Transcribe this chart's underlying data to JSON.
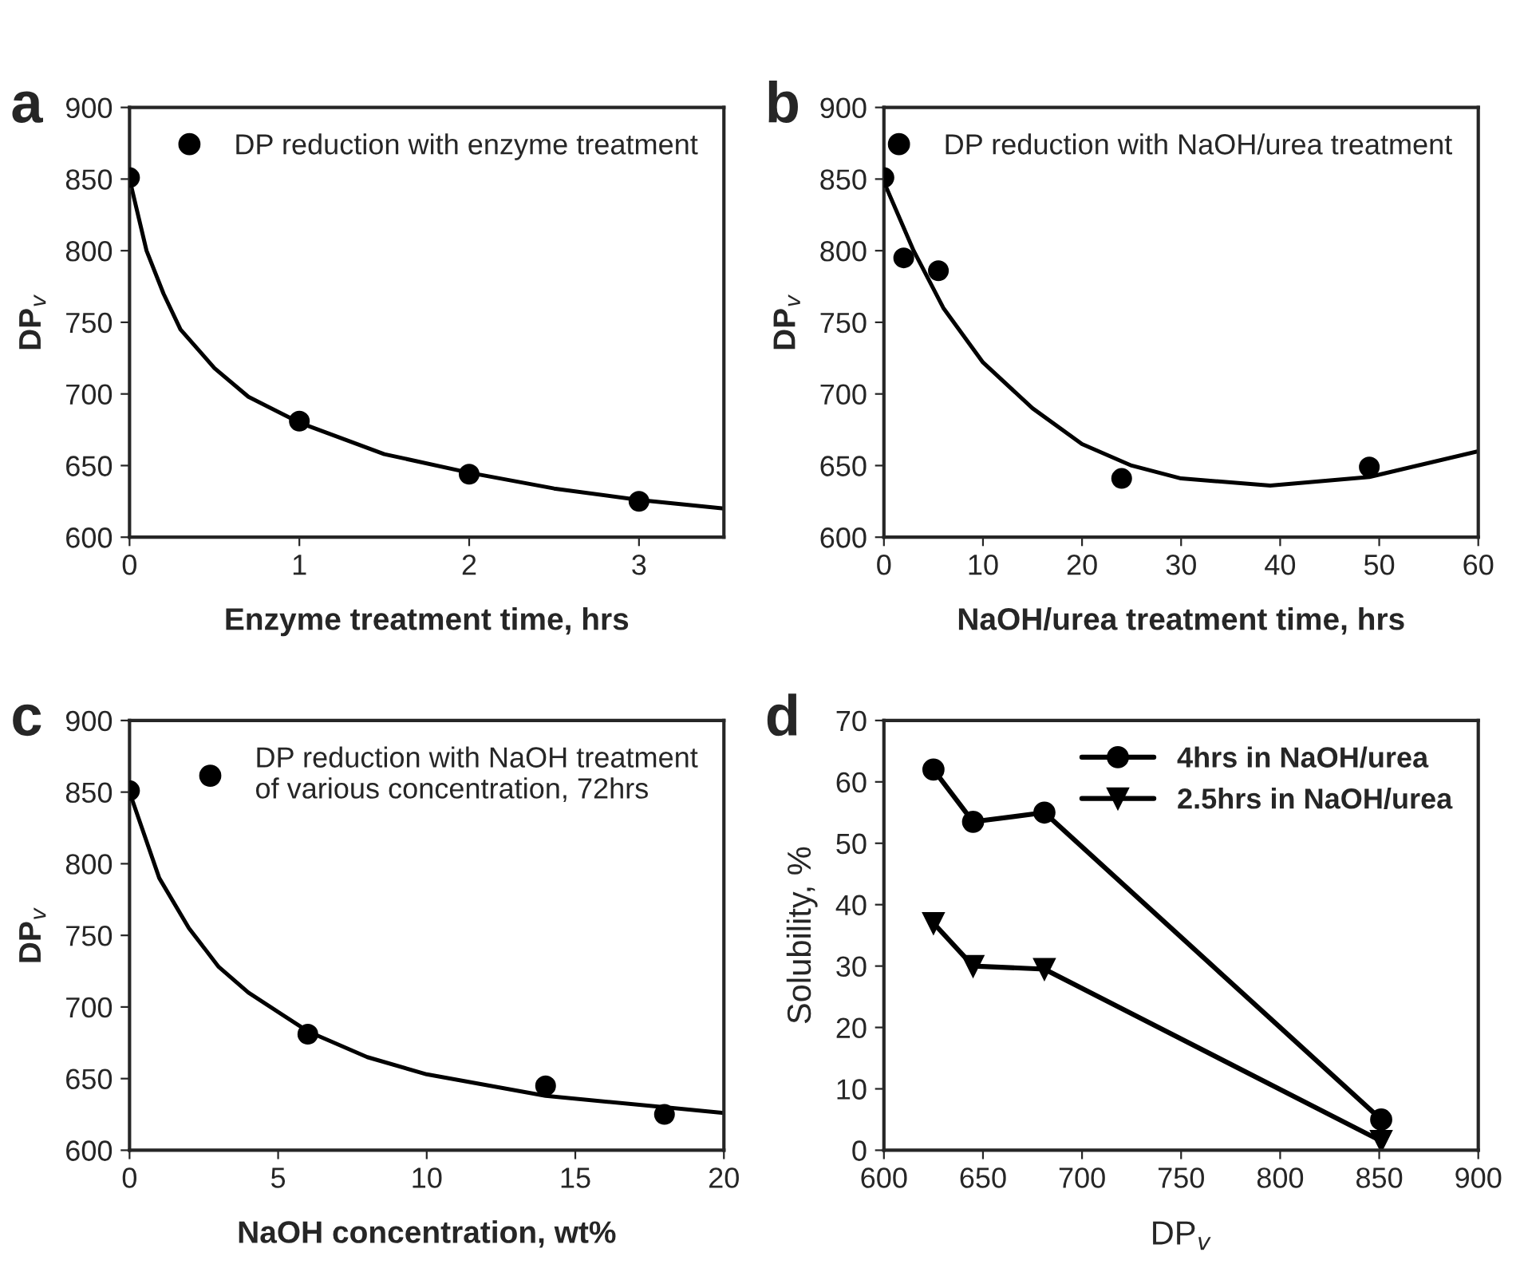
{
  "chart_data": [
    {
      "type": "scatter",
      "title": "a",
      "xlabel": "Enzyme treatment time, hrs",
      "ylabel": "DP$_{v}$",
      "xlim": [
        0,
        3.5
      ],
      "xticks": [
        0,
        1,
        2,
        3
      ],
      "ylim": [
        600,
        900
      ],
      "yticks": [
        600,
        650,
        700,
        750,
        800,
        850,
        900
      ],
      "grid": false,
      "legend": "top right",
      "series": [
        {
          "name": "DP reduction with enzyme treatment",
          "type": "scatter",
          "marker": "circle",
          "color": "#000000",
          "x": [
            0,
            1,
            2,
            3
          ],
          "values": [
            851,
            681,
            644,
            625
          ]
        },
        {
          "type": "line",
          "marker": "none",
          "color": "#000000",
          "x": [
            0,
            0.1,
            0.2,
            0.3,
            0.5,
            0.7,
            1,
            1.5,
            2,
            2.5,
            3,
            3.5
          ],
          "values": [
            850,
            800,
            770,
            745,
            718,
            698,
            680,
            658,
            645,
            634,
            626,
            620
          ]
        }
      ]
    },
    {
      "type": "scatter",
      "title": "b",
      "xlabel": "NaOH/urea treatment time, hrs",
      "ylabel": "DP$_{v}$",
      "xlim": [
        0,
        60
      ],
      "xticks": [
        0,
        10,
        20,
        30,
        40,
        50,
        60
      ],
      "ylim": [
        600,
        900
      ],
      "yticks": [
        600,
        650,
        700,
        750,
        800,
        850,
        900
      ],
      "grid": false,
      "legend": "top right",
      "series": [
        {
          "name": "DP reduction with NaOH/urea treatment",
          "type": "scatter",
          "marker": "circle",
          "color": "#000000",
          "x": [
            0,
            2,
            5.5,
            24,
            49
          ],
          "values": [
            851,
            795,
            786,
            641,
            649
          ]
        },
        {
          "type": "line",
          "marker": "none",
          "color": "#000000",
          "x": [
            0,
            3,
            6,
            10,
            15,
            20,
            25,
            30,
            39,
            49,
            60
          ],
          "values": [
            848,
            800,
            760,
            722,
            690,
            665,
            650,
            641,
            636,
            642,
            660
          ]
        }
      ]
    },
    {
      "type": "scatter",
      "title": "c",
      "xlabel": "NaOH concentration, wt%",
      "ylabel": "DP$_{v}$",
      "xlim": [
        0,
        20
      ],
      "xticks": [
        0,
        5,
        10,
        15,
        20
      ],
      "ylim": [
        600,
        900
      ],
      "yticks": [
        600,
        650,
        700,
        750,
        800,
        850,
        900
      ],
      "grid": false,
      "legend": "top right",
      "series": [
        {
          "name": "DP reduction with NaOH treatment\nof various concentration, 72hrs",
          "type": "scatter",
          "marker": "circle",
          "color": "#000000",
          "x": [
            0,
            6,
            14,
            18
          ],
          "values": [
            851,
            681,
            645,
            625
          ]
        },
        {
          "type": "line",
          "marker": "none",
          "color": "#000000",
          "x": [
            0,
            1,
            2,
            3,
            4,
            6,
            8,
            10,
            14,
            18,
            20
          ],
          "values": [
            850,
            790,
            755,
            728,
            710,
            683,
            665,
            653,
            638,
            630,
            626
          ]
        }
      ]
    },
    {
      "type": "line",
      "title": "d",
      "xlabel": "DP$_{v}$",
      "ylabel": "Solubility, %",
      "xlim": [
        600,
        900
      ],
      "xticks": [
        600,
        650,
        700,
        750,
        800,
        850,
        900
      ],
      "ylim": [
        0,
        70
      ],
      "yticks": [
        0,
        10,
        20,
        30,
        40,
        50,
        60,
        70
      ],
      "grid": false,
      "legend": "top right",
      "series": [
        {
          "name": "4hrs in NaOH/urea",
          "type": "line",
          "marker": "circle",
          "color": "#000000",
          "x": [
            625,
            645,
            681,
            851
          ],
          "values": [
            62,
            53.5,
            55,
            5
          ]
        },
        {
          "name": "2.5hrs in NaOH/urea",
          "type": "line",
          "marker": "triangle",
          "color": "#000000",
          "x": [
            625,
            645,
            681,
            851
          ],
          "values": [
            37,
            30,
            29.5,
            1.5
          ]
        }
      ]
    }
  ]
}
